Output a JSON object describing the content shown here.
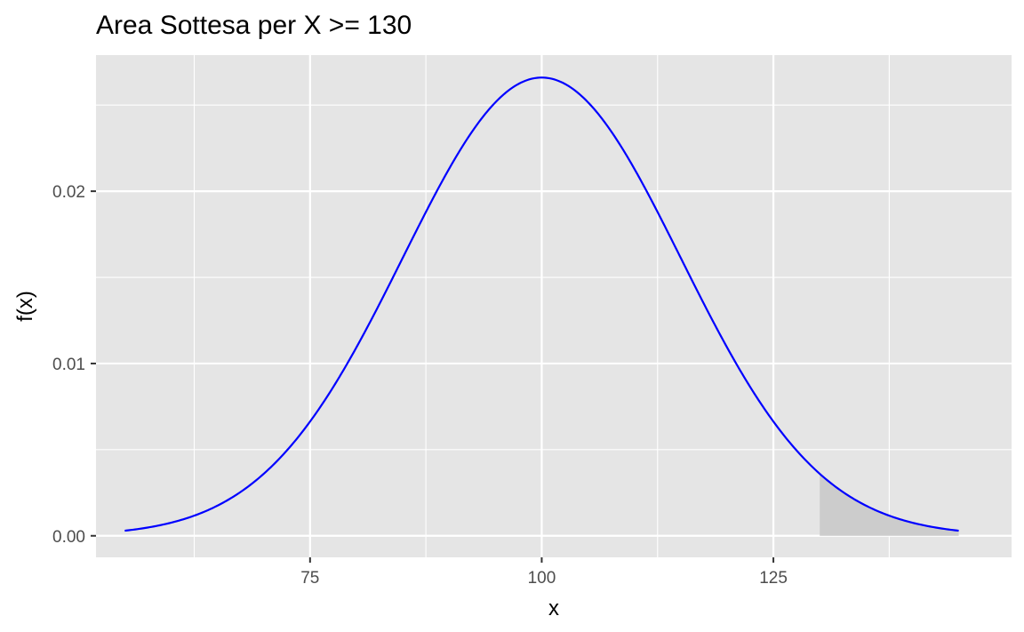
{
  "chart_data": {
    "type": "area",
    "title": "Area Sottesa per X >= 130",
    "xlabel": "x",
    "ylabel": "f(x)",
    "xlim": [
      51.9,
      150.7
    ],
    "ylim": [
      -0.00125,
      0.0279
    ],
    "x_ticks": [
      {
        "value": 75,
        "label": "75"
      },
      {
        "value": 100,
        "label": "100"
      },
      {
        "value": 125,
        "label": "125"
      }
    ],
    "x_minor_ticks": [
      62.5,
      87.5,
      112.5,
      137.5
    ],
    "y_ticks": [
      {
        "value": 0,
        "label": "0.00"
      },
      {
        "value": 0.01,
        "label": "0.01"
      },
      {
        "value": 0.02,
        "label": "0.02"
      }
    ],
    "y_minor_ticks": [
      0.005,
      0.015,
      0.025
    ],
    "grid": true,
    "background": "#e5e5e5",
    "grid_color": "#ffffff",
    "series": [
      {
        "kind": "line",
        "color": "#0000ff",
        "distribution": {
          "family": "normal",
          "mean": 100,
          "sd": 15
        },
        "x_range": [
          55,
          145
        ],
        "x": [
          55,
          57.5,
          60,
          62.5,
          65,
          67.5,
          70,
          72.5,
          75,
          77.5,
          80,
          82.5,
          85,
          87.5,
          90,
          92.5,
          95,
          97.5,
          100,
          102.5,
          105,
          107.5,
          110,
          112.5,
          115,
          117.5,
          120,
          122.5,
          125,
          127.5,
          130,
          132.5,
          135,
          137.5,
          140,
          142.5,
          145
        ],
        "y": [
          0.000295,
          0.000481,
          0.00076,
          0.001168,
          0.001742,
          0.002518,
          0.003599,
          0.004939,
          0.00664,
          0.008636,
          0.010934,
          0.013451,
          0.016131,
          0.018826,
          0.021297,
          0.023453,
          0.025159,
          0.026229,
          0.026596,
          0.026229,
          0.025159,
          0.023453,
          0.021297,
          0.018826,
          0.016131,
          0.013451,
          0.010934,
          0.008636,
          0.00664,
          0.004939,
          0.003599,
          0.002518,
          0.001742,
          0.001168,
          0.00076,
          0.000481,
          0.000295
        ]
      },
      {
        "kind": "shaded_area",
        "color": "#cccccc",
        "from_x": 130,
        "to_x": 145,
        "x": [
          130,
          132.5,
          135,
          137.5,
          140,
          142.5,
          145
        ],
        "y": [
          0.003599,
          0.002518,
          0.001742,
          0.001168,
          0.00076,
          0.000481,
          0.000295
        ]
      }
    ]
  }
}
